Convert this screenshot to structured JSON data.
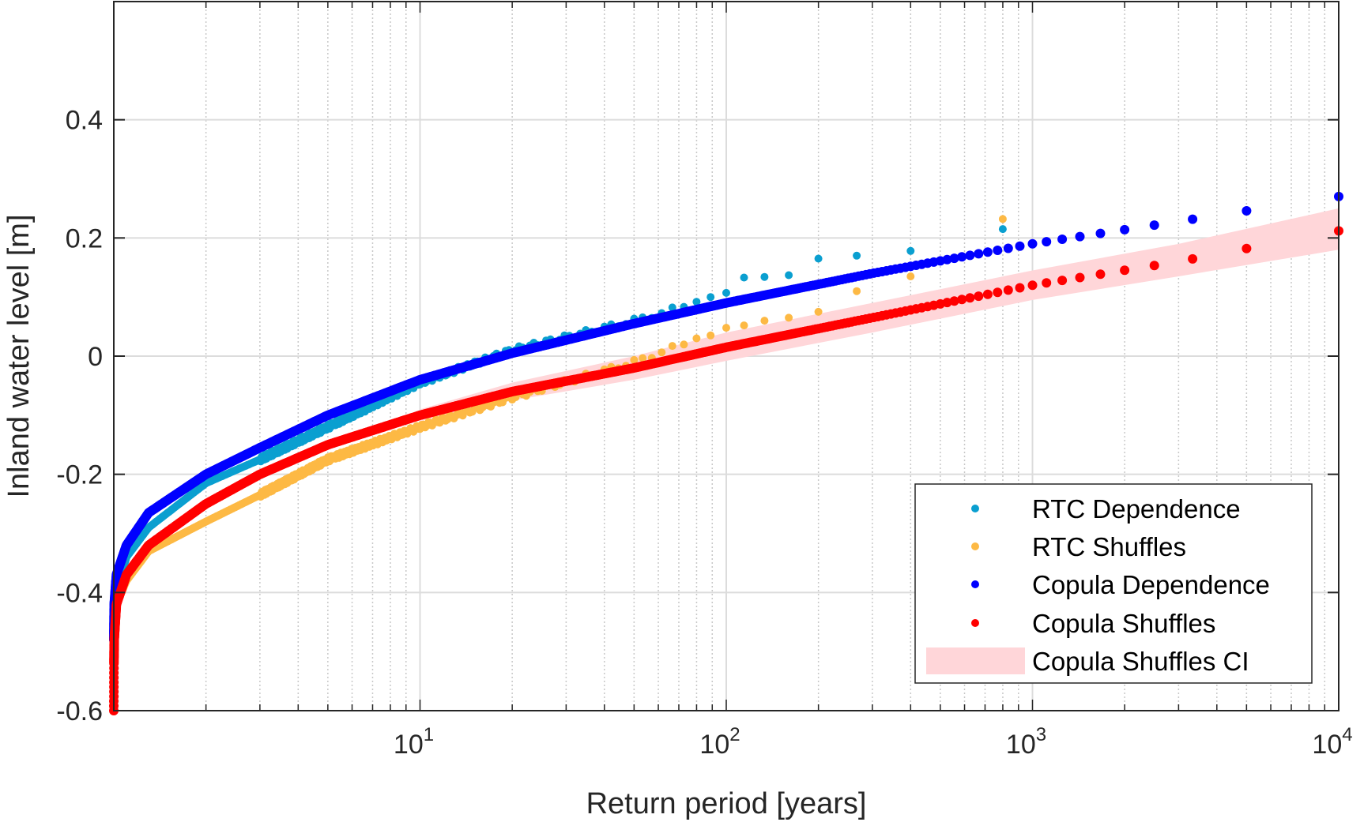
{
  "chart_data": {
    "type": "scatter",
    "xscale": "log",
    "xlabel": "Return period [years]",
    "ylabel": "Inland water level [m]",
    "xlim": [
      1,
      10000
    ],
    "ylim": [
      -0.6,
      0.6
    ],
    "grid": true,
    "legend_position": "bottom-right",
    "xticks": [
      {
        "base": "10",
        "exp": "1",
        "value": 10
      },
      {
        "base": "10",
        "exp": "2",
        "value": 100
      },
      {
        "base": "10",
        "exp": "3",
        "value": 1000
      },
      {
        "base": "10",
        "exp": "4",
        "value": 10000
      }
    ],
    "yticks": [
      {
        "label": "0.4",
        "value": 0.4
      },
      {
        "label": "0.2",
        "value": 0.2
      },
      {
        "label": "0",
        "value": 0
      },
      {
        "label": "-0.2",
        "value": -0.2
      },
      {
        "label": "-0.4",
        "value": -0.4
      },
      {
        "label": "-0.6",
        "value": -0.6
      }
    ],
    "series": [
      {
        "name": "RTC Dependence",
        "color": "#0a9fd0",
        "sample_years": 800,
        "curve": [
          [
            1,
            -0.5
          ],
          [
            1.003,
            -0.45
          ],
          [
            1.02,
            -0.4
          ],
          [
            1.1,
            -0.34
          ],
          [
            1.3,
            -0.29
          ],
          [
            2,
            -0.215
          ],
          [
            3,
            -0.175
          ],
          [
            5,
            -0.12
          ],
          [
            10,
            -0.045
          ],
          [
            20,
            0.01
          ],
          [
            50,
            0.06
          ],
          [
            80,
            0.09
          ]
        ],
        "tail": [
          [
            800,
            0.215
          ],
          [
            400,
            0.178
          ],
          [
            266.7,
            0.17
          ],
          [
            200,
            0.165
          ],
          [
            160,
            0.137
          ],
          [
            133.3,
            0.134
          ],
          [
            114.3,
            0.133
          ],
          [
            100,
            0.107
          ],
          [
            88.9,
            0.1
          ],
          [
            80,
            0.092
          ]
        ]
      },
      {
        "name": "RTC Shuffles",
        "color": "#fdb944",
        "sample_years": 800,
        "curve": [
          [
            1,
            -0.5
          ],
          [
            1.003,
            -0.47
          ],
          [
            1.02,
            -0.42
          ],
          [
            1.1,
            -0.38
          ],
          [
            1.3,
            -0.33
          ],
          [
            2,
            -0.28
          ],
          [
            3,
            -0.235
          ],
          [
            5,
            -0.175
          ],
          [
            10,
            -0.12
          ],
          [
            20,
            -0.07
          ],
          [
            50,
            -0.01
          ],
          [
            80,
            0.028
          ]
        ],
        "tail": [
          [
            800,
            0.232
          ],
          [
            400,
            0.135
          ],
          [
            266.7,
            0.11
          ],
          [
            200,
            0.075
          ],
          [
            160,
            0.065
          ],
          [
            133.3,
            0.06
          ],
          [
            114.3,
            0.052
          ],
          [
            100,
            0.048
          ],
          [
            88.9,
            0.035
          ],
          [
            80,
            0.03
          ]
        ]
      },
      {
        "name": "Copula Dependence",
        "color": "#0000ff",
        "sample_years": 10000,
        "curve": [
          [
            1,
            -0.48
          ],
          [
            1.003,
            -0.42
          ],
          [
            1.02,
            -0.37
          ],
          [
            1.1,
            -0.32
          ],
          [
            1.3,
            -0.265
          ],
          [
            2,
            -0.2
          ],
          [
            3,
            -0.155
          ],
          [
            5,
            -0.1
          ],
          [
            10,
            -0.04
          ],
          [
            20,
            0.005
          ],
          [
            50,
            0.055
          ],
          [
            100,
            0.09
          ],
          [
            300,
            0.14
          ],
          [
            1000,
            0.19
          ],
          [
            3000,
            0.228
          ],
          [
            10000,
            0.27
          ]
        ],
        "tail": []
      },
      {
        "name": "Copula Shuffles",
        "color": "#ff0000",
        "sample_years": 10000,
        "curve": [
          [
            1,
            -0.6
          ],
          [
            1.001,
            -0.52
          ],
          [
            1.003,
            -0.48
          ],
          [
            1.02,
            -0.42
          ],
          [
            1.1,
            -0.37
          ],
          [
            1.3,
            -0.32
          ],
          [
            2,
            -0.25
          ],
          [
            3,
            -0.2
          ],
          [
            5,
            -0.15
          ],
          [
            10,
            -0.1
          ],
          [
            20,
            -0.06
          ],
          [
            50,
            -0.02
          ],
          [
            100,
            0.015
          ],
          [
            300,
            0.065
          ],
          [
            1000,
            0.12
          ],
          [
            3000,
            0.16
          ],
          [
            10000,
            0.212
          ]
        ],
        "tail": []
      }
    ],
    "band": {
      "name": "Copula Shuffles CI",
      "color": "#ffd6d9",
      "lower": [
        [
          10,
          -0.11
        ],
        [
          20,
          -0.075
        ],
        [
          50,
          -0.04
        ],
        [
          100,
          -0.008
        ],
        [
          300,
          0.04
        ],
        [
          1000,
          0.095
        ],
        [
          3000,
          0.135
        ],
        [
          10000,
          0.18
        ]
      ],
      "upper": [
        [
          10,
          -0.09
        ],
        [
          20,
          -0.045
        ],
        [
          50,
          0.0
        ],
        [
          100,
          0.04
        ],
        [
          300,
          0.09
        ],
        [
          1000,
          0.145
        ],
        [
          3000,
          0.19
        ],
        [
          10000,
          0.25
        ]
      ]
    }
  }
}
